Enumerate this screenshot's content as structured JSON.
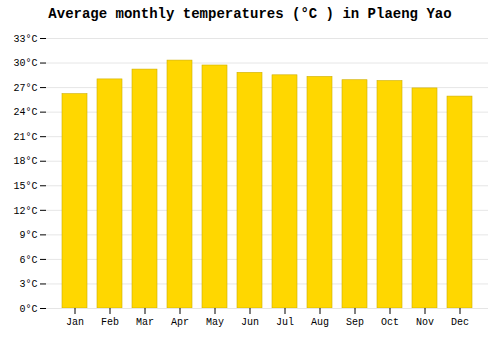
{
  "chart_data": {
    "type": "bar",
    "title": "Average monthly temperatures (°C ) in Plaeng Yao",
    "categories": [
      "Jan",
      "Feb",
      "Mar",
      "Apr",
      "May",
      "Jun",
      "Jul",
      "Aug",
      "Sep",
      "Oct",
      "Nov",
      "Dec"
    ],
    "values": [
      26.2,
      28.0,
      29.2,
      30.3,
      29.7,
      28.8,
      28.5,
      28.3,
      27.9,
      27.8,
      26.9,
      25.9
    ],
    "color": "#FFD700",
    "ylim": [
      0,
      33
    ],
    "yticks": [
      {
        "value": 0,
        "label": "0°C"
      },
      {
        "value": 3,
        "label": "3°C"
      },
      {
        "value": 6,
        "label": "6°C"
      },
      {
        "value": 9,
        "label": "9°C"
      },
      {
        "value": 12,
        "label": "12°C"
      },
      {
        "value": 15,
        "label": "15°C"
      },
      {
        "value": 18,
        "label": "18°C"
      },
      {
        "value": 21,
        "label": "21°C"
      },
      {
        "value": 24,
        "label": "24°C"
      },
      {
        "value": 27,
        "label": "27°C"
      },
      {
        "value": 30,
        "label": "30°C"
      },
      {
        "value": 33,
        "label": "33°C"
      }
    ],
    "grid": true
  }
}
